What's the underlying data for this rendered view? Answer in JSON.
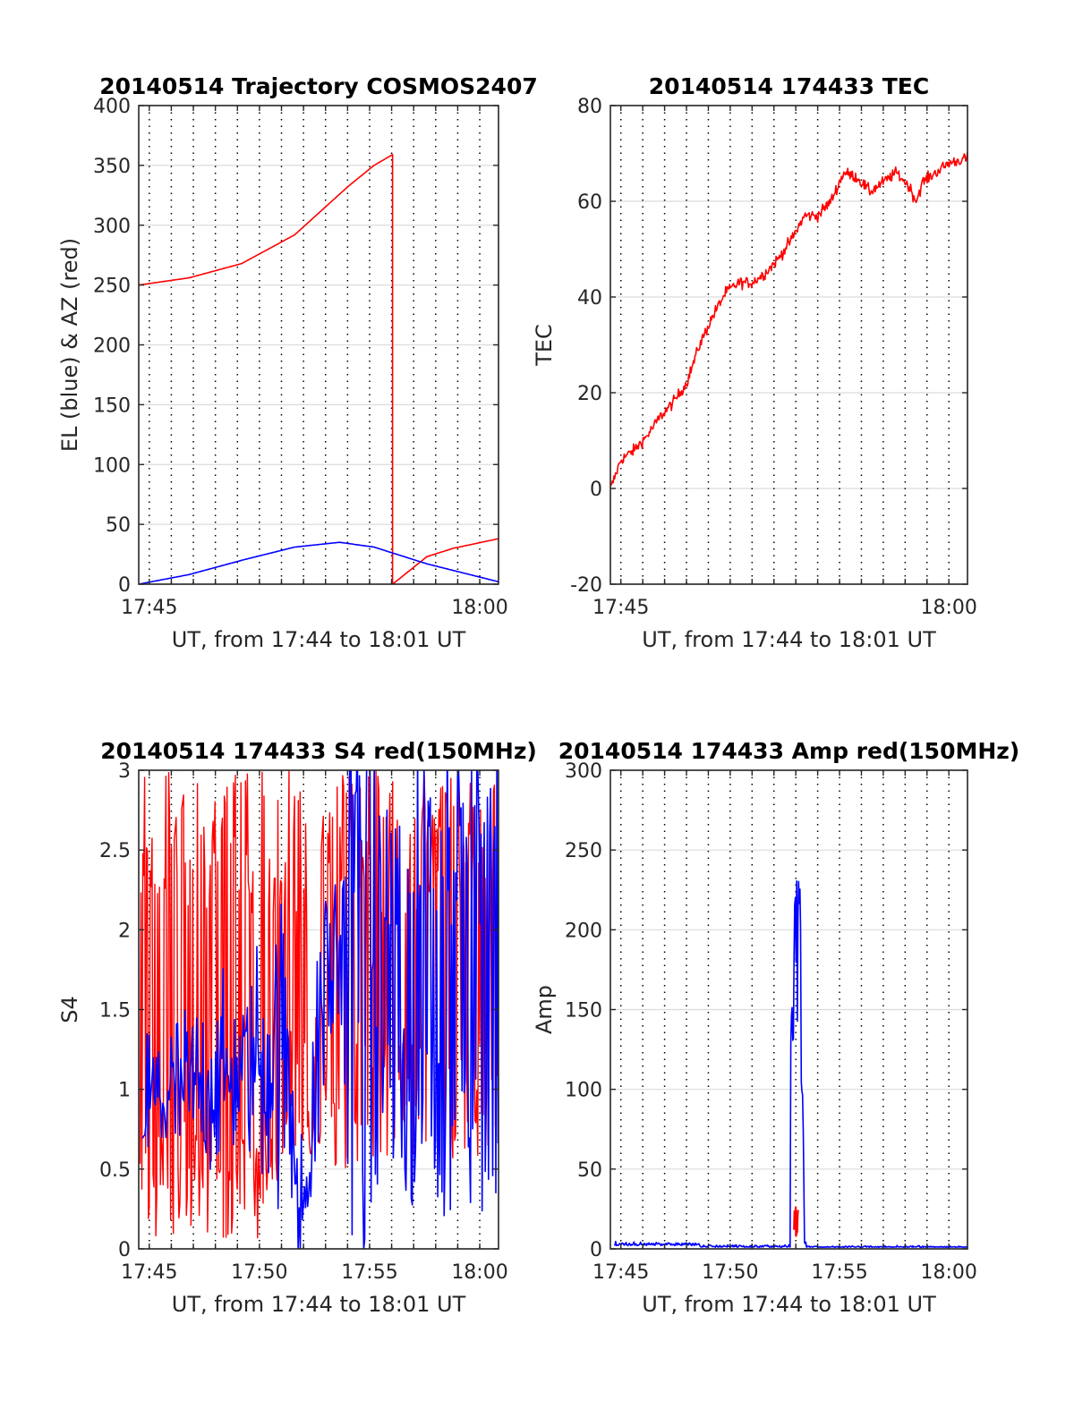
{
  "colors": {
    "red": "#ff0000",
    "blue": "#0000ff",
    "axis": "#262626",
    "grid": "#dcdcdc",
    "dotted": "#000000"
  },
  "chart_data": [
    {
      "type": "line",
      "title": "20140514 Trajectory COSMOS2407",
      "xlabel": "UT, from 17:44 to 18:01 UT",
      "ylabel": "EL (blue) & AZ (red)",
      "xlim": [
        17.742,
        18.0142
      ],
      "ylim": [
        0,
        400
      ],
      "yticks": [
        0,
        50,
        100,
        150,
        200,
        250,
        300,
        350,
        400
      ],
      "xtick_labels": [
        {
          "x": 17.75,
          "label": "17:45"
        },
        {
          "x": 18.0,
          "label": "18:00"
        }
      ],
      "grid": "y solid, x dotted",
      "series": [
        {
          "color": "red",
          "shape": "azimuth",
          "x": [
            17.742,
            17.78,
            17.82,
            17.86,
            17.88,
            17.9,
            17.92,
            17.934,
            17.9341,
            17.96,
            17.98,
            18.0142
          ],
          "y": [
            250,
            256,
            268,
            292,
            312,
            332,
            350,
            359,
            0,
            23,
            30,
            38
          ]
        },
        {
          "color": "blue",
          "shape": "elevation",
          "x": [
            17.742,
            17.78,
            17.82,
            17.86,
            17.894,
            17.92,
            17.96,
            18.0142
          ],
          "y": [
            0,
            8,
            20,
            31,
            35,
            31,
            17,
            2
          ]
        }
      ]
    },
    {
      "type": "line",
      "title": "20140514 174433 TEC",
      "xlabel": "UT, from 17:44 to 18:01 UT",
      "ylabel": "TEC",
      "xlim": [
        17.742,
        18.0142
      ],
      "ylim": [
        -20,
        80
      ],
      "yticks": [
        -20,
        0,
        20,
        40,
        60,
        80
      ],
      "xtick_labels": [
        {
          "x": 17.75,
          "label": "17:45"
        },
        {
          "x": 18.0,
          "label": "18:00"
        }
      ],
      "grid": "y solid, x dotted",
      "series": [
        {
          "color": "red",
          "noise": 0.6,
          "x": [
            17.7423,
            17.75,
            17.76,
            17.77,
            17.78,
            17.79,
            17.8,
            17.81,
            17.82,
            17.83,
            17.84,
            17.85,
            17.86,
            17.87,
            17.88,
            17.89,
            17.9,
            17.91,
            17.92,
            17.93,
            17.94,
            17.95,
            17.96,
            17.97,
            17.975,
            17.98,
            17.99,
            18.0,
            18.0142
          ],
          "y": [
            0,
            6,
            8,
            11,
            15,
            18,
            22,
            30,
            36,
            41,
            43,
            43,
            45,
            48,
            52,
            57,
            57,
            60,
            66,
            65,
            62,
            64,
            66,
            63,
            60,
            64,
            66,
            68,
            69
          ]
        }
      ]
    },
    {
      "type": "line",
      "title": "20140514 174433 S4 red(150MHz)",
      "xlabel": "UT, from 17:44 to 18:01 UT",
      "ylabel": "S4",
      "xlim": [
        17.742,
        18.0142
      ],
      "ylim": [
        0,
        3
      ],
      "yticks": [
        0,
        0.5,
        1,
        1.5,
        2,
        2.5,
        3
      ],
      "ytick_labels": [
        "0",
        "0.5",
        "1",
        "1.5",
        "2",
        "2.5",
        "3"
      ],
      "xtick_labels": [
        {
          "x": 17.75,
          "label": "17:45"
        },
        {
          "x": 17.8333,
          "label": "17:50"
        },
        {
          "x": 17.9167,
          "label": "17:55"
        },
        {
          "x": 18.0,
          "label": "18:00"
        }
      ],
      "grid": "y solid, x dotted",
      "series": [
        {
          "color": "red",
          "shape": "s4-red",
          "x": [
            17.742,
            18.0142
          ],
          "y": [
            0,
            3
          ]
        },
        {
          "color": "blue",
          "shape": "s4-blue",
          "x": [
            17.742,
            17.78,
            17.82,
            17.85,
            17.87,
            17.88,
            17.9,
            17.93,
            17.96,
            18.0142
          ],
          "y": [
            0.9,
            1.0,
            1.1,
            1.3,
            0.2,
            1.6,
            2.0,
            2.2,
            2.5,
            2.5
          ]
        }
      ]
    },
    {
      "type": "line",
      "title": "20140514 174433 Amp red(150MHz)",
      "xlabel": "UT, from 17:44 to 18:01 UT",
      "ylabel": "Amp",
      "xlim": [
        17.742,
        18.0142
      ],
      "ylim": [
        0,
        300
      ],
      "yticks": [
        0,
        50,
        100,
        150,
        200,
        250,
        300
      ],
      "xtick_labels": [
        {
          "x": 17.75,
          "label": "17:45"
        },
        {
          "x": 17.8333,
          "label": "17:50"
        },
        {
          "x": 17.9167,
          "label": "17:55"
        },
        {
          "x": 18.0,
          "label": "18:00"
        }
      ],
      "grid": "y solid, x dotted",
      "series": [
        {
          "color": "blue",
          "shape": "amp-spike",
          "x": [
            17.742,
            17.81,
            17.876,
            17.881,
            17.884,
            17.887,
            17.89,
            18.0142
          ],
          "y": [
            2,
            2,
            3,
            200,
            265,
            220,
            5,
            1
          ]
        },
        {
          "color": "red",
          "shape": "amp-red",
          "x": [
            17.882,
            17.885
          ],
          "y": [
            5,
            27
          ]
        }
      ]
    }
  ]
}
